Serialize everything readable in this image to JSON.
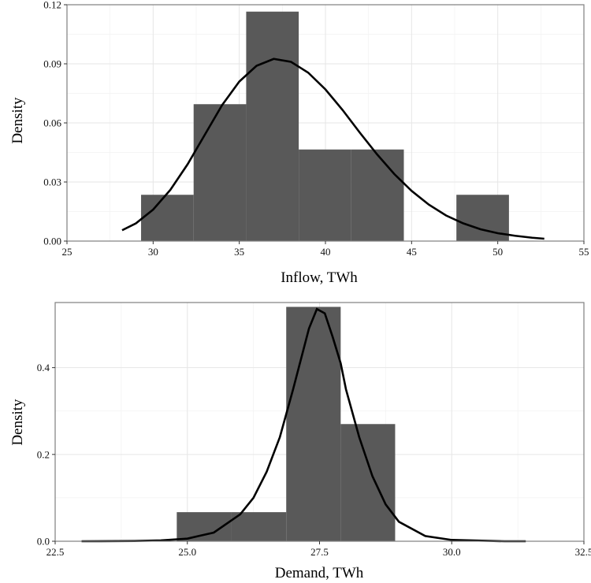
{
  "colors": {
    "bar": "#595959",
    "curve": "#000000",
    "panel_border": "#7f7f7f",
    "grid": "#e6e6e6"
  },
  "chart_data": [
    {
      "type": "histogram",
      "xlabel": "Inflow, TWh",
      "ylabel": "Density",
      "xlim": [
        25,
        55
      ],
      "ylim": [
        0,
        0.12
      ],
      "x_ticks": [
        25,
        30,
        35,
        40,
        45,
        50,
        55
      ],
      "x_tick_labels": [
        "25",
        "30",
        "35",
        "40",
        "45",
        "50",
        "55"
      ],
      "y_ticks": [
        0,
        0.03,
        0.06,
        0.09,
        0.12
      ],
      "y_tick_labels": [
        "0.00",
        "0.03",
        "0.06",
        "0.09",
        "0.12"
      ],
      "baseline_range": [
        26.2,
        53.9
      ],
      "bins": [
        {
          "x0": 29.3,
          "x1": 32.35,
          "density": 0.0235
        },
        {
          "x0": 32.35,
          "x1": 35.4,
          "density": 0.0695
        },
        {
          "x0": 35.4,
          "x1": 38.45,
          "density": 0.1165
        },
        {
          "x0": 38.45,
          "x1": 41.5,
          "density": 0.0465
        },
        {
          "x0": 41.5,
          "x1": 44.55,
          "density": 0.0465
        },
        {
          "x0": 44.55,
          "x1": 47.6,
          "density": 0
        },
        {
          "x0": 47.6,
          "x1": 50.65,
          "density": 0.0235
        }
      ],
      "density_curve": [
        {
          "x": 28.2,
          "y": 0.0055
        },
        {
          "x": 29.0,
          "y": 0.009
        },
        {
          "x": 30.0,
          "y": 0.016
        },
        {
          "x": 31.0,
          "y": 0.026
        },
        {
          "x": 32.0,
          "y": 0.039
        },
        {
          "x": 33.0,
          "y": 0.054
        },
        {
          "x": 34.0,
          "y": 0.069
        },
        {
          "x": 35.0,
          "y": 0.081
        },
        {
          "x": 36.0,
          "y": 0.089
        },
        {
          "x": 37.0,
          "y": 0.0925
        },
        {
          "x": 38.0,
          "y": 0.091
        },
        {
          "x": 39.0,
          "y": 0.0855
        },
        {
          "x": 40.0,
          "y": 0.077
        },
        {
          "x": 41.0,
          "y": 0.0665
        },
        {
          "x": 42.0,
          "y": 0.055
        },
        {
          "x": 43.0,
          "y": 0.044
        },
        {
          "x": 44.0,
          "y": 0.034
        },
        {
          "x": 45.0,
          "y": 0.0255
        },
        {
          "x": 46.0,
          "y": 0.0185
        },
        {
          "x": 47.0,
          "y": 0.013
        },
        {
          "x": 48.0,
          "y": 0.009
        },
        {
          "x": 49.0,
          "y": 0.006
        },
        {
          "x": 50.0,
          "y": 0.004
        },
        {
          "x": 51.0,
          "y": 0.0027
        },
        {
          "x": 52.0,
          "y": 0.0017
        },
        {
          "x": 52.7,
          "y": 0.0012
        }
      ]
    },
    {
      "type": "histogram",
      "xlabel": "Demand, TWh",
      "ylabel": "Density",
      "xlim": [
        22.5,
        32.5
      ],
      "ylim": [
        0,
        0.55
      ],
      "x_ticks": [
        22.5,
        25.0,
        27.5,
        30.0,
        32.5
      ],
      "x_tick_labels": [
        "22.5",
        "25.0",
        "27.5",
        "30.0",
        "32.5"
      ],
      "y_ticks": [
        0,
        0.2,
        0.4
      ],
      "y_tick_labels": [
        "0.0",
        "0.2",
        "0.4"
      ],
      "baseline_range": [
        22.7,
        32.2
      ],
      "bins": [
        {
          "x0": 24.8,
          "x1": 25.83,
          "density": 0.067
        },
        {
          "x0": 25.83,
          "x1": 26.87,
          "density": 0.067
        },
        {
          "x0": 26.87,
          "x1": 27.9,
          "density": 0.54
        },
        {
          "x0": 27.9,
          "x1": 28.93,
          "density": 0.27
        }
      ],
      "density_curve": [
        {
          "x": 23.0,
          "y": 0.0
        },
        {
          "x": 24.0,
          "y": 0.0005
        },
        {
          "x": 24.5,
          "y": 0.002
        },
        {
          "x": 25.0,
          "y": 0.006
        },
        {
          "x": 25.5,
          "y": 0.02
        },
        {
          "x": 26.0,
          "y": 0.062
        },
        {
          "x": 26.25,
          "y": 0.1
        },
        {
          "x": 26.5,
          "y": 0.16
        },
        {
          "x": 26.75,
          "y": 0.24
        },
        {
          "x": 27.0,
          "y": 0.35
        },
        {
          "x": 27.15,
          "y": 0.42
        },
        {
          "x": 27.3,
          "y": 0.49
        },
        {
          "x": 27.45,
          "y": 0.535
        },
        {
          "x": 27.6,
          "y": 0.525
        },
        {
          "x": 27.75,
          "y": 0.47
        },
        {
          "x": 27.9,
          "y": 0.41
        },
        {
          "x": 28.0,
          "y": 0.35
        },
        {
          "x": 28.25,
          "y": 0.24
        },
        {
          "x": 28.5,
          "y": 0.15
        },
        {
          "x": 28.75,
          "y": 0.085
        },
        {
          "x": 29.0,
          "y": 0.045
        },
        {
          "x": 29.5,
          "y": 0.012
        },
        {
          "x": 30.0,
          "y": 0.003
        },
        {
          "x": 31.0,
          "y": 0.0
        },
        {
          "x": 31.4,
          "y": 0.0
        }
      ]
    }
  ]
}
